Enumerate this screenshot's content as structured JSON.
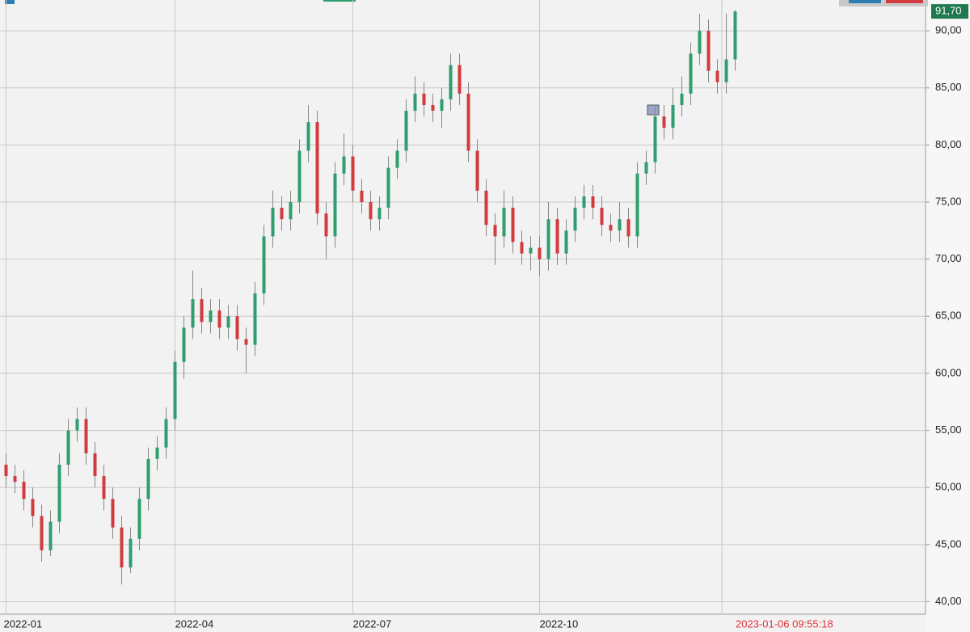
{
  "chart_data": {
    "type": "candlestick",
    "categories": [
      "2022-01",
      null,
      null,
      null,
      null,
      null,
      null,
      null,
      null,
      null,
      null,
      null,
      null,
      null,
      null,
      null,
      null,
      null,
      null,
      "2022-04",
      null,
      null,
      null,
      null,
      null,
      null,
      null,
      null,
      null,
      null,
      null,
      null,
      null,
      null,
      null,
      null,
      null,
      null,
      null,
      "2022-07",
      null,
      null,
      null,
      null,
      null,
      null,
      null,
      null,
      null,
      null,
      null,
      null,
      null,
      null,
      null,
      null,
      null,
      null,
      null,
      null,
      "2022-10",
      null,
      null,
      null,
      null,
      null,
      null,
      null,
      null,
      null,
      null,
      null,
      null,
      null,
      null,
      null,
      null,
      null,
      null,
      null,
      null,
      null,
      null
    ],
    "open": [
      52.0,
      51.0,
      50.5,
      49.0,
      47.5,
      44.5,
      47.0,
      52.0,
      55.0,
      56.0,
      53.0,
      51.0,
      49.0,
      46.5,
      43.0,
      45.5,
      49.0,
      52.5,
      53.5,
      56.0,
      61.0,
      64.0,
      66.5,
      64.5,
      65.5,
      64.0,
      65.0,
      63.0,
      62.5,
      67.0,
      72.0,
      74.5,
      73.5,
      75.0,
      79.5,
      82.0,
      74.0,
      72.0,
      77.5,
      79.0,
      76.0,
      75.0,
      73.5,
      74.5,
      78.0,
      79.5,
      83.0,
      84.5,
      83.5,
      83.0,
      84.0,
      87.0,
      84.5,
      79.5,
      76.0,
      73.0,
      72.0,
      74.5,
      71.5,
      70.5,
      71.0,
      70.0,
      73.5,
      70.5,
      72.5,
      74.5,
      75.5,
      74.5,
      73.0,
      72.5,
      73.5,
      72.0,
      77.5,
      78.5,
      82.5,
      81.5,
      83.5,
      84.5,
      88.0,
      90.0,
      86.5,
      85.5,
      87.5
    ],
    "high": [
      53.0,
      52.0,
      51.5,
      50.0,
      48.5,
      48.0,
      53.0,
      56.0,
      57.0,
      57.0,
      54.0,
      52.0,
      50.0,
      47.5,
      46.5,
      50.0,
      53.5,
      54.5,
      57.0,
      62.0,
      65.0,
      69.0,
      67.5,
      66.5,
      66.5,
      66.0,
      66.0,
      64.0,
      68.0,
      73.0,
      76.0,
      75.5,
      76.0,
      80.5,
      83.5,
      83.0,
      75.0,
      78.5,
      81.0,
      80.0,
      77.0,
      76.0,
      75.5,
      79.0,
      80.5,
      84.0,
      86.0,
      85.5,
      84.5,
      85.0,
      88.0,
      88.0,
      85.5,
      80.5,
      77.0,
      74.0,
      76.0,
      75.5,
      72.5,
      72.0,
      72.0,
      75.0,
      74.5,
      73.5,
      75.5,
      76.5,
      76.5,
      75.5,
      74.0,
      75.0,
      74.5,
      78.5,
      79.5,
      83.5,
      83.5,
      85.0,
      86.0,
      89.0,
      91.5,
      91.0,
      87.5,
      91.5,
      91.8
    ],
    "low": [
      50.0,
      49.5,
      48.0,
      46.5,
      43.5,
      44.0,
      46.0,
      51.0,
      54.0,
      52.0,
      50.0,
      48.0,
      45.5,
      41.5,
      42.5,
      44.5,
      48.0,
      51.5,
      52.5,
      55.0,
      59.5,
      63.0,
      63.5,
      63.5,
      63.0,
      63.0,
      62.0,
      60.0,
      61.5,
      66.0,
      71.0,
      72.5,
      72.5,
      74.0,
      78.5,
      73.0,
      70.0,
      71.0,
      76.5,
      75.0,
      74.0,
      72.5,
      72.5,
      73.5,
      77.0,
      78.5,
      82.0,
      82.5,
      82.0,
      81.5,
      83.0,
      83.5,
      78.5,
      75.0,
      72.0,
      69.5,
      71.0,
      70.5,
      69.5,
      69.0,
      68.5,
      69.0,
      69.5,
      69.5,
      71.5,
      73.5,
      73.5,
      72.0,
      71.5,
      71.5,
      71.0,
      71.0,
      76.5,
      77.5,
      80.5,
      80.5,
      82.5,
      83.5,
      87.0,
      85.5,
      84.5,
      84.5,
      86.5
    ],
    "close": [
      51.0,
      50.5,
      49.0,
      47.5,
      44.5,
      47.0,
      52.0,
      55.0,
      56.0,
      53.0,
      51.0,
      49.0,
      46.5,
      43.0,
      45.5,
      49.0,
      52.5,
      53.5,
      56.0,
      61.0,
      64.0,
      66.5,
      64.5,
      65.5,
      64.0,
      65.0,
      63.0,
      62.5,
      67.0,
      72.0,
      74.5,
      73.5,
      75.0,
      79.5,
      82.0,
      74.0,
      72.0,
      77.5,
      79.0,
      76.0,
      75.0,
      73.5,
      74.5,
      78.0,
      79.5,
      83.0,
      84.5,
      83.5,
      83.0,
      84.0,
      87.0,
      84.5,
      79.5,
      76.0,
      73.0,
      72.0,
      74.5,
      71.5,
      70.5,
      71.0,
      70.0,
      73.5,
      70.5,
      72.5,
      74.5,
      75.5,
      74.5,
      73.0,
      72.5,
      73.5,
      72.0,
      77.5,
      78.5,
      82.5,
      81.5,
      83.5,
      84.5,
      88.0,
      90.0,
      86.5,
      85.5,
      87.5,
      91.7
    ],
    "up_color": "#2e9e6e",
    "down_color": "#d23a3f",
    "ylim": [
      38.9,
      92.7
    ],
    "yticks": [
      {
        "value": 40,
        "label": "40,00"
      },
      {
        "value": 45,
        "label": "45,00"
      },
      {
        "value": 50,
        "label": "50,00"
      },
      {
        "value": 55,
        "label": "55,00"
      },
      {
        "value": 60,
        "label": "60,00"
      },
      {
        "value": 65,
        "label": "65,00"
      },
      {
        "value": 70,
        "label": "70,00"
      },
      {
        "value": 75,
        "label": "75,00"
      },
      {
        "value": 80,
        "label": "80,00"
      },
      {
        "value": 85,
        "label": "85,00"
      },
      {
        "value": 90,
        "label": "90,00"
      }
    ],
    "last_price": {
      "value": 91.7,
      "label": "91,70"
    },
    "time_label": "2023-01-06 09:55:18",
    "grid": true
  }
}
